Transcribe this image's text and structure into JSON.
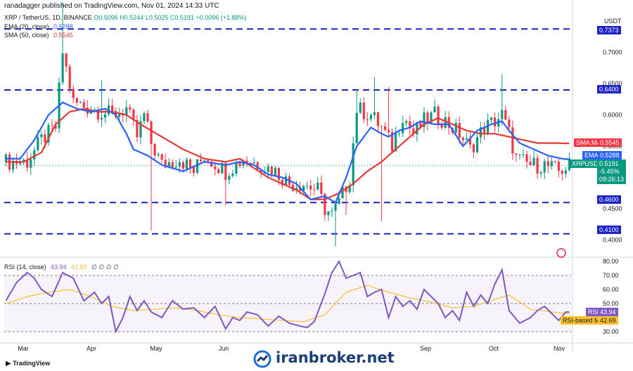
{
  "header": {
    "published": "ranadagger published on TradingView.com, Nov 01, 2024 14:33 UTC",
    "symbol": "XRP / TetherUS, 1D, BINANCE",
    "o": "O0.5096",
    "h": "H0.5244",
    "l": "L0.5025",
    "c": "C0.5191",
    "chg": "+0.0096 (+1.88%)",
    "ema_label": "EMA (20, close)",
    "ema_val": "0.5288",
    "sma_label": "SMA (50, close)",
    "sma_val": "0.5545"
  },
  "currency": "USDT",
  "rsi_header": {
    "label": "RSI (14, close)",
    "rsi": "43.94",
    "ma": "42.69",
    "rest": "∅ ∅ ∅ ∅"
  },
  "footer": {
    "brand": "TradingView",
    "watermark": "iranbroker.net"
  },
  "price_labels": {
    "l0737": "0.7373",
    "l064": "0.6400",
    "l046": "0.4600",
    "l041": "0.4100",
    "smama": "SMA:MA",
    "smaval": "0.5545",
    "ema": "EMA",
    "emaval": "0.5288",
    "sym": "XRPUSDT",
    "last": "0.5191",
    "pct": "-5.45%",
    "timer": "09:26:13",
    "rsi": "RSI",
    "rsival": "43.94",
    "rsima": "RSI-based MA",
    "rsimaval": "42.69"
  },
  "colors": {
    "up": "#089981",
    "down": "#f23645",
    "ema": "#2962ff",
    "sma": "#e53935",
    "level": "#1a22c8",
    "rsi": "#7e57c2",
    "rsima": "#fbc02d"
  },
  "chart_data": {
    "type": "candlestick",
    "price_axis": {
      "ticks": [
        0.4,
        0.45,
        0.5,
        0.55,
        0.6,
        0.65,
        0.7
      ],
      "tick_labels": [
        "0.4000",
        "0.4500",
        "0.5000",
        "0.5500",
        "0.6000",
        "0.6500",
        "0.7000"
      ]
    },
    "rsi_axis": {
      "ticks": [
        30,
        40,
        50,
        60,
        70,
        80
      ],
      "tick_labels": [
        "30.00",
        "40.00",
        "50.00",
        "60.00",
        "70.00",
        "80.00"
      ]
    },
    "x_labels": [
      "Mar",
      "Apr",
      "May",
      "Jun",
      "Sep",
      "Oct",
      "Nov"
    ],
    "horizontal_levels": [
      0.7373,
      0.64,
      0.46,
      0.41
    ],
    "series": [
      {
        "name": "EMA (20, close)",
        "last": 0.5288
      },
      {
        "name": "SMA (50, close)",
        "last": 0.5545
      },
      {
        "name": "RSI (14, close)",
        "last": 43.94
      },
      {
        "name": "RSI-based MA",
        "last": 42.69
      }
    ],
    "close_path": [
      [
        0,
        0.525
      ],
      [
        6,
        0.525
      ],
      [
        10,
        0.56
      ],
      [
        14,
        0.58
      ],
      [
        16,
        0.7
      ],
      [
        19,
        0.62
      ],
      [
        24,
        0.61
      ],
      [
        30,
        0.6
      ],
      [
        34,
        0.61
      ],
      [
        37,
        0.565
      ],
      [
        39,
        0.6
      ],
      [
        41,
        0.555
      ],
      [
        44,
        0.52
      ],
      [
        49,
        0.53
      ],
      [
        53,
        0.51
      ],
      [
        56,
        0.535
      ],
      [
        62,
        0.51
      ],
      [
        67,
        0.53
      ],
      [
        72,
        0.52
      ],
      [
        76,
        0.51
      ],
      [
        80,
        0.49
      ],
      [
        84,
        0.49
      ],
      [
        88,
        0.48
      ],
      [
        90,
        0.45
      ],
      [
        92,
        0.44
      ],
      [
        94,
        0.46
      ],
      [
        97,
        0.5
      ],
      [
        99,
        0.61
      ],
      [
        103,
        0.6
      ],
      [
        106,
        0.58
      ],
      [
        109,
        0.55
      ],
      [
        112,
        0.6
      ],
      [
        115,
        0.57
      ],
      [
        118,
        0.59
      ],
      [
        121,
        0.6
      ],
      [
        124,
        0.59
      ],
      [
        128,
        0.57
      ],
      [
        131,
        0.545
      ],
      [
        135,
        0.58
      ],
      [
        138,
        0.59
      ],
      [
        140,
        0.6
      ],
      [
        142,
        0.57
      ],
      [
        144,
        0.53
      ],
      [
        148,
        0.52
      ],
      [
        152,
        0.52
      ],
      [
        156,
        0.51
      ],
      [
        159,
        0.5191
      ]
    ],
    "ema_path": [
      [
        0,
        0.53
      ],
      [
        4,
        0.53
      ],
      [
        8,
        0.56
      ],
      [
        12,
        0.6
      ],
      [
        16,
        0.62
      ],
      [
        20,
        0.61
      ],
      [
        24,
        0.605
      ],
      [
        28,
        0.61
      ],
      [
        31,
        0.6
      ],
      [
        34,
        0.57
      ],
      [
        36,
        0.545
      ],
      [
        40,
        0.535
      ],
      [
        44,
        0.52
      ],
      [
        50,
        0.51
      ],
      [
        56,
        0.525
      ],
      [
        62,
        0.52
      ],
      [
        66,
        0.525
      ],
      [
        70,
        0.52
      ],
      [
        74,
        0.505
      ],
      [
        78,
        0.5
      ],
      [
        82,
        0.49
      ],
      [
        86,
        0.465
      ],
      [
        90,
        0.47
      ],
      [
        93,
        0.46
      ],
      [
        96,
        0.5
      ],
      [
        99,
        0.55
      ],
      [
        103,
        0.58
      ],
      [
        106,
        0.57
      ],
      [
        108,
        0.565
      ],
      [
        111,
        0.575
      ],
      [
        114,
        0.58
      ],
      [
        117,
        0.59
      ],
      [
        121,
        0.585
      ],
      [
        125,
        0.585
      ],
      [
        129,
        0.55
      ],
      [
        133,
        0.575
      ],
      [
        137,
        0.585
      ],
      [
        140,
        0.59
      ],
      [
        142,
        0.575
      ],
      [
        145,
        0.555
      ],
      [
        149,
        0.545
      ],
      [
        153,
        0.535
      ],
      [
        157,
        0.53
      ],
      [
        159,
        0.5288
      ]
    ],
    "sma_path": [
      [
        0,
        0.525
      ],
      [
        5,
        0.525
      ],
      [
        10,
        0.54
      ],
      [
        14,
        0.585
      ],
      [
        18,
        0.605
      ],
      [
        22,
        0.61
      ],
      [
        26,
        0.605
      ],
      [
        30,
        0.605
      ],
      [
        34,
        0.6
      ],
      [
        38,
        0.585
      ],
      [
        44,
        0.565
      ],
      [
        50,
        0.545
      ],
      [
        56,
        0.53
      ],
      [
        62,
        0.525
      ],
      [
        66,
        0.53
      ],
      [
        70,
        0.515
      ],
      [
        74,
        0.5
      ],
      [
        78,
        0.49
      ],
      [
        82,
        0.48
      ],
      [
        86,
        0.465
      ],
      [
        90,
        0.465
      ],
      [
        94,
        0.475
      ],
      [
        98,
        0.49
      ],
      [
        102,
        0.51
      ],
      [
        106,
        0.525
      ],
      [
        110,
        0.545
      ],
      [
        114,
        0.565
      ],
      [
        118,
        0.585
      ],
      [
        122,
        0.595
      ],
      [
        126,
        0.585
      ],
      [
        130,
        0.575
      ],
      [
        134,
        0.57
      ],
      [
        138,
        0.57
      ],
      [
        142,
        0.565
      ],
      [
        146,
        0.56
      ],
      [
        150,
        0.555
      ],
      [
        155,
        0.555
      ],
      [
        159,
        0.5545
      ]
    ],
    "rsi_path": [
      [
        0,
        52
      ],
      [
        3,
        65
      ],
      [
        6,
        72
      ],
      [
        8,
        68
      ],
      [
        10,
        60
      ],
      [
        13,
        55
      ],
      [
        16,
        72
      ],
      [
        19,
        68
      ],
      [
        22,
        52
      ],
      [
        25,
        58
      ],
      [
        27,
        50
      ],
      [
        29,
        55
      ],
      [
        31,
        30
      ],
      [
        33,
        40
      ],
      [
        35,
        55
      ],
      [
        37,
        45
      ],
      [
        39,
        52
      ],
      [
        41,
        44
      ],
      [
        44,
        40
      ],
      [
        47,
        52
      ],
      [
        50,
        46
      ],
      [
        53,
        47
      ],
      [
        56,
        40
      ],
      [
        59,
        48
      ],
      [
        62,
        32
      ],
      [
        64,
        40
      ],
      [
        66,
        38
      ],
      [
        68,
        44
      ],
      [
        71,
        42
      ],
      [
        74,
        34
      ],
      [
        77,
        41
      ],
      [
        80,
        36
      ],
      [
        83,
        34
      ],
      [
        85,
        33
      ],
      [
        87,
        37
      ],
      [
        90,
        57
      ],
      [
        92,
        72
      ],
      [
        94,
        80
      ],
      [
        96,
        68
      ],
      [
        98,
        70
      ],
      [
        100,
        72
      ],
      [
        102,
        55
      ],
      [
        104,
        58
      ],
      [
        106,
        60
      ],
      [
        108,
        40
      ],
      [
        110,
        55
      ],
      [
        112,
        48
      ],
      [
        114,
        52
      ],
      [
        116,
        46
      ],
      [
        118,
        60
      ],
      [
        120,
        55
      ],
      [
        122,
        50
      ],
      [
        124,
        40
      ],
      [
        126,
        45
      ],
      [
        128,
        38
      ],
      [
        130,
        58
      ],
      [
        132,
        48
      ],
      [
        134,
        56
      ],
      [
        136,
        50
      ],
      [
        138,
        64
      ],
      [
        140,
        74
      ],
      [
        142,
        45
      ],
      [
        145,
        36
      ],
      [
        148,
        40
      ],
      [
        150,
        45
      ],
      [
        152,
        48
      ],
      [
        154,
        43
      ],
      [
        156,
        38
      ],
      [
        158,
        44
      ],
      [
        159,
        43.94
      ]
    ],
    "rsima_path": [
      [
        0,
        50
      ],
      [
        6,
        55
      ],
      [
        12,
        58
      ],
      [
        18,
        60
      ],
      [
        24,
        55
      ],
      [
        30,
        48
      ],
      [
        36,
        45
      ],
      [
        42,
        46
      ],
      [
        48,
        47
      ],
      [
        54,
        45
      ],
      [
        60,
        42
      ],
      [
        66,
        40
      ],
      [
        72,
        39
      ],
      [
        78,
        38
      ],
      [
        84,
        37
      ],
      [
        90,
        42
      ],
      [
        96,
        58
      ],
      [
        102,
        63
      ],
      [
        108,
        58
      ],
      [
        114,
        54
      ],
      [
        120,
        51
      ],
      [
        126,
        47
      ],
      [
        132,
        48
      ],
      [
        138,
        53
      ],
      [
        142,
        56
      ],
      [
        148,
        46
      ],
      [
        154,
        44
      ],
      [
        159,
        42.69
      ]
    ]
  }
}
